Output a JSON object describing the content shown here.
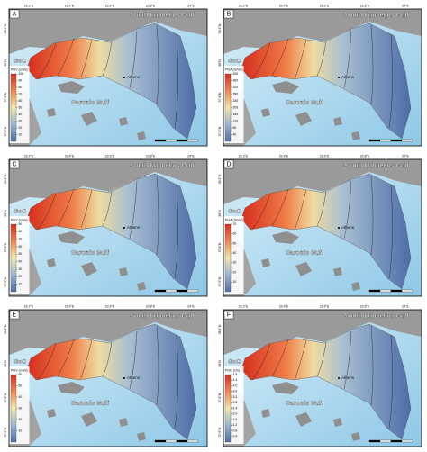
{
  "axes": {
    "lon_labels": [
      "23.2°E",
      "23.4°E",
      "23.6°E",
      "23.8°E",
      "24°E"
    ],
    "lat_labels": [
      "38.2°N",
      "38°N",
      "37.8°N",
      "37.6°N"
    ]
  },
  "places": {
    "north_gulf": "South Euboekos Gulf",
    "west_gulf": "GoC",
    "south_gulf": "Saronic Gulf",
    "city": "Athens"
  },
  "panels": [
    {
      "label": "A",
      "legend_title": "PGV (cm/s)",
      "lim": [
        0,
        100
      ],
      "ticks": [
        10,
        20,
        30,
        40,
        50,
        60,
        70,
        80,
        90,
        100
      ]
    },
    {
      "label": "B",
      "legend_title": "PGA (cm/s²)",
      "lim": [
        0,
        400
      ],
      "ticks": [
        40,
        80,
        120,
        160,
        200,
        240,
        280,
        320,
        360,
        400
      ]
    },
    {
      "label": "C",
      "legend_title": "PGV (cm/s)",
      "lim": [
        0,
        90
      ],
      "ticks": [
        10,
        20,
        30,
        40,
        50,
        60,
        70,
        80,
        90
      ]
    },
    {
      "label": "D",
      "legend_title": "PGA (cm/s²)",
      "lim": [
        0,
        70
      ],
      "ticks": [
        10,
        20,
        30,
        40,
        50,
        60,
        70
      ]
    },
    {
      "label": "E",
      "legend_title": "PGV (cm/s)",
      "lim": [
        0,
        60
      ],
      "ticks": [
        10,
        20,
        30,
        40,
        50,
        60
      ]
    },
    {
      "label": "F",
      "legend_title": "PGD (cm)",
      "lim": [
        0,
        4.8
      ],
      "ticks": [
        0.4,
        0.8,
        1.2,
        1.6,
        {
          "value": 2.0,
          "label": "2.0"
        },
        2.4,
        2.8,
        3.2,
        3.6,
        {
          "value": 4.0,
          "label": "4.0"
        },
        4.4,
        4.8
      ]
    }
  ]
}
